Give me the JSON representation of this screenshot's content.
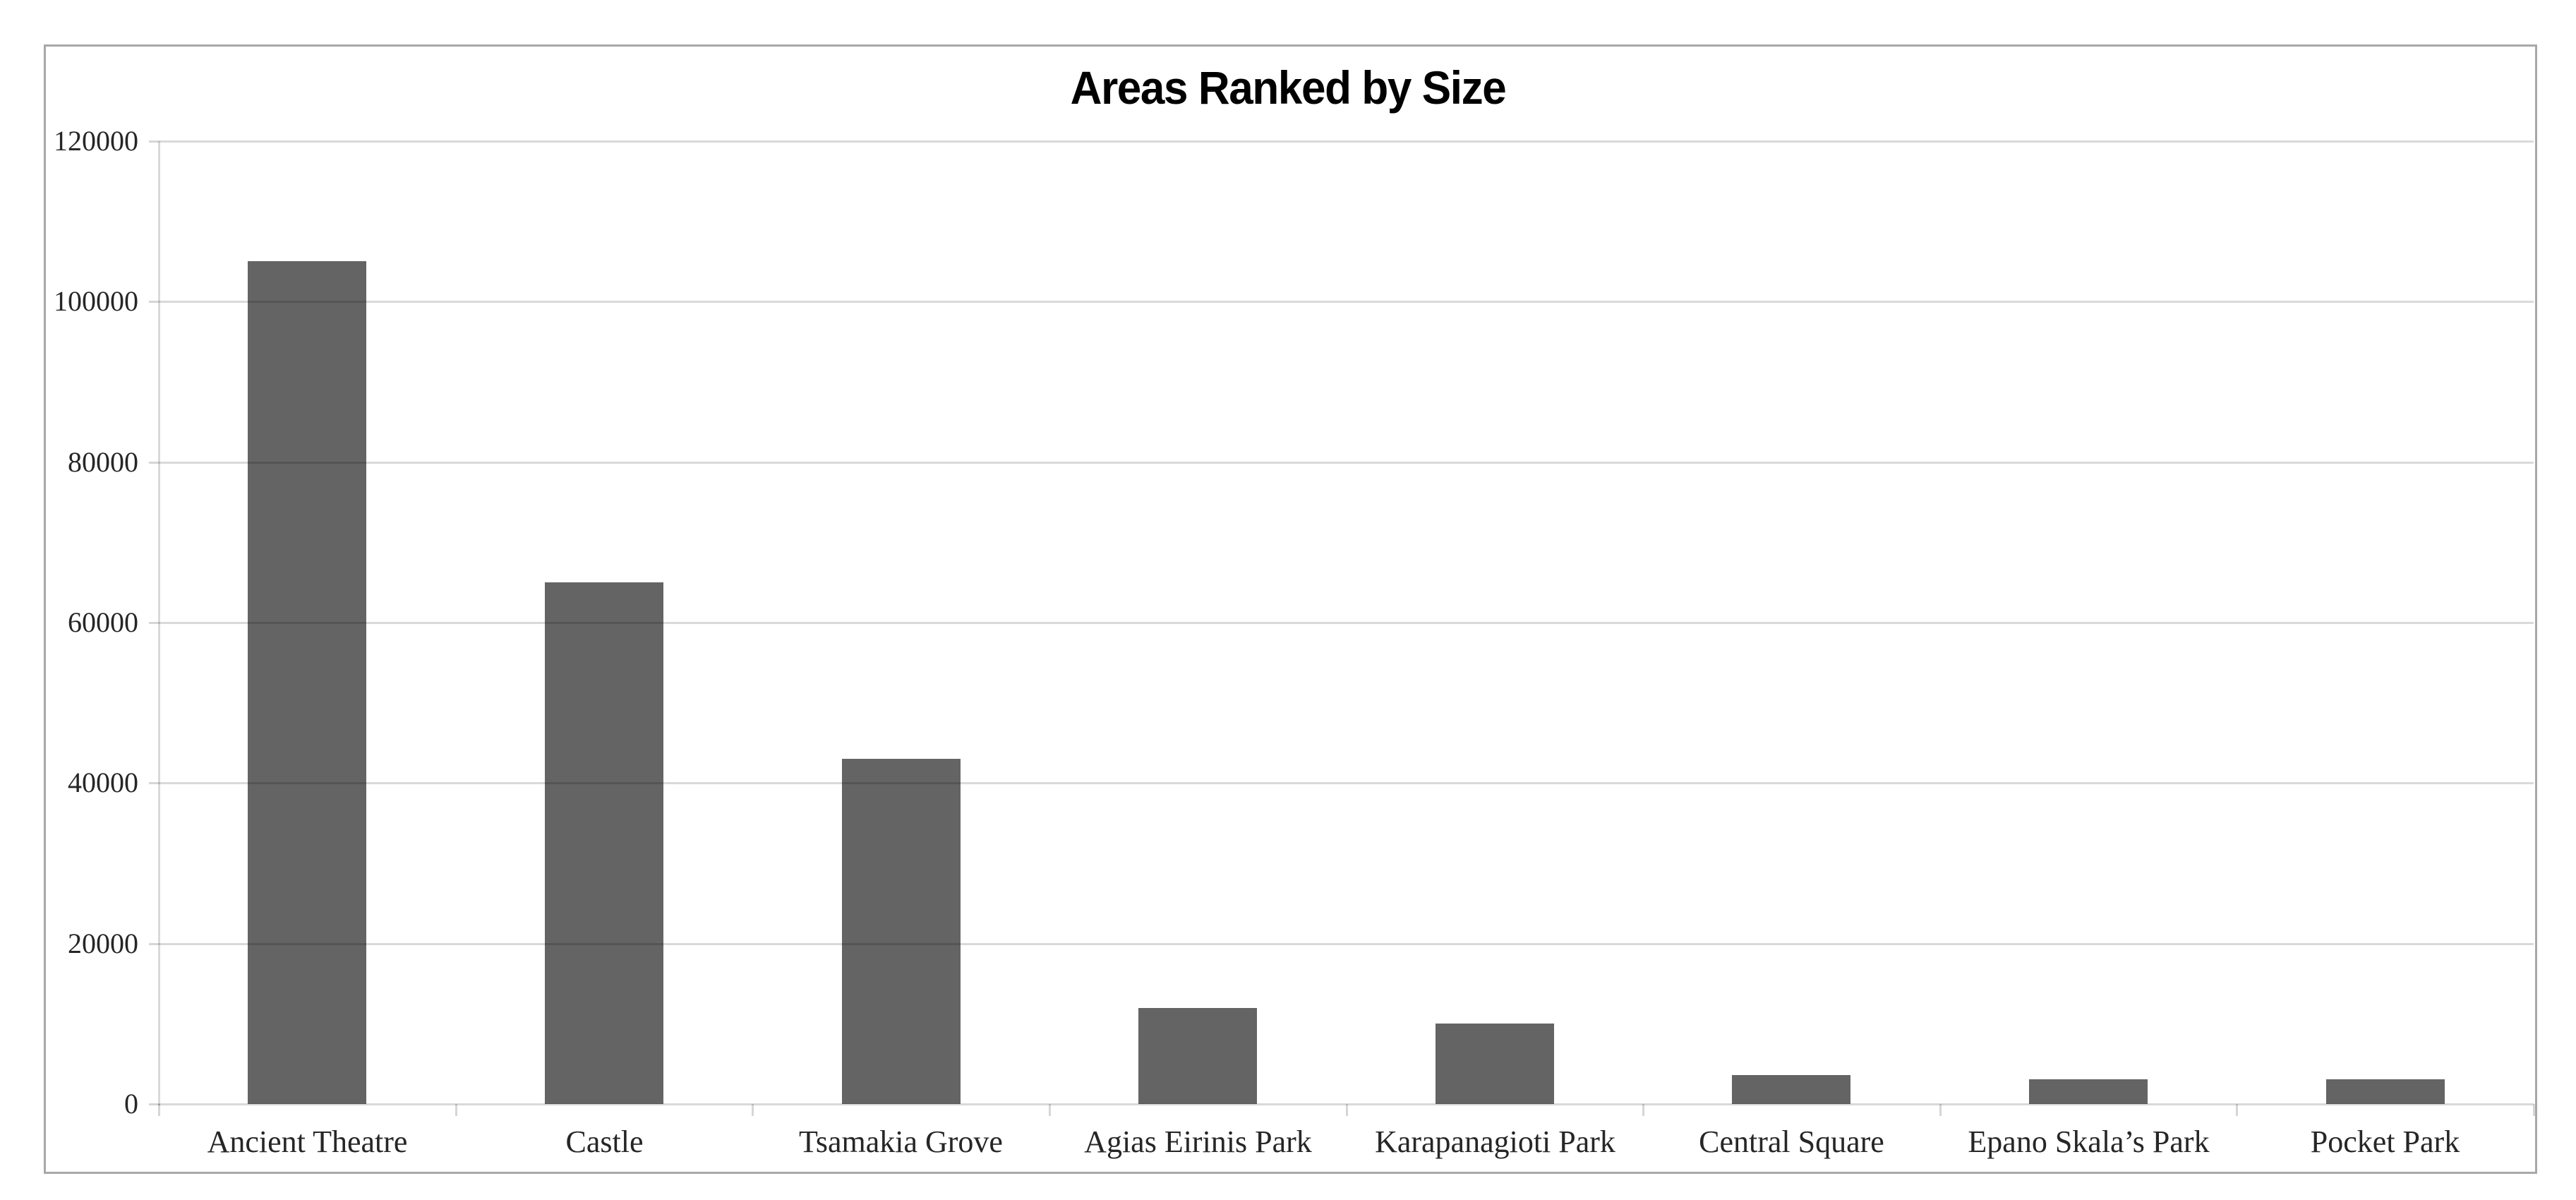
{
  "chart_data": {
    "type": "bar",
    "title": "Areas Ranked by Size",
    "categories": [
      "Ancient Theatre",
      "Castle",
      "Tsamakia Grove",
      "Agias Eirinis Park",
      "Karapanagioti Park",
      "Central Square",
      "Epano Skala’s Park",
      "Pocket Park"
    ],
    "values": [
      105000,
      65000,
      43000,
      12000,
      10000,
      3600,
      3100,
      3100
    ],
    "xlabel": "",
    "ylabel": "",
    "ylim": [
      0,
      120000
    ],
    "yticks": [
      0,
      20000,
      40000,
      60000,
      80000,
      100000,
      120000
    ],
    "ytick_labels": [
      "0",
      "20000",
      "40000",
      "60000",
      "80000",
      "100000",
      "120000"
    ],
    "grid": true,
    "gridlines_over_bars": true,
    "legend": false,
    "bar_color": "#646464",
    "gridline_color": "#d9d9d9",
    "chart_border_color": "#a8a8a8",
    "label_color": "#262626",
    "title_color": "#000000",
    "background": "#ffffff"
  }
}
